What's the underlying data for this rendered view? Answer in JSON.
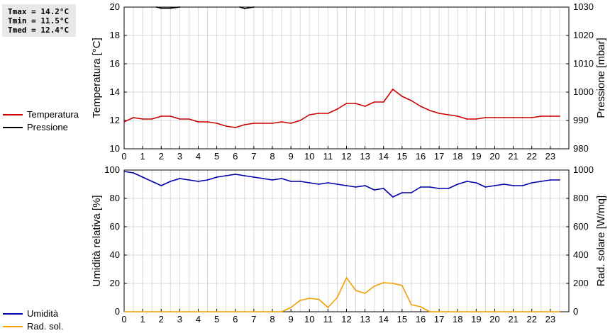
{
  "stats": {
    "tmax": "Tmax = 14.2°C",
    "tmin": "Tmin = 11.5°C",
    "tmed": "Tmed = 12.4°C"
  },
  "legend_top": [
    {
      "label": "Temperatura",
      "color": "#cc0000"
    },
    {
      "label": "Pressione",
      "color": "#000000"
    }
  ],
  "legend_bottom": [
    {
      "label": "Umidità",
      "color": "#0000aa"
    },
    {
      "label": "Rad. sol.",
      "color": "#f0a000"
    }
  ],
  "chart_data": [
    {
      "type": "line",
      "ylabel": "Temperatura [°C]",
      "y2label": "Pressione [mbar]",
      "xlim": [
        0,
        24
      ],
      "ylim": [
        10,
        20
      ],
      "y2lim": [
        980,
        1030
      ],
      "x_ticks": [
        "0",
        "1",
        "2",
        "3",
        "4",
        "5",
        "6",
        "7",
        "8",
        "9",
        "10",
        "11",
        "12",
        "13",
        "14",
        "15",
        "16",
        "17",
        "18",
        "19",
        "20",
        "21",
        "22",
        "23"
      ],
      "y_ticks": [
        10,
        12,
        14,
        16,
        18,
        20
      ],
      "y2_ticks": [
        980,
        990,
        1000,
        1010,
        1020,
        1030
      ],
      "grid": true,
      "series": [
        {
          "name": "Temperatura",
          "axis": "left",
          "color": "#cc0000",
          "x": [
            0,
            0.5,
            1,
            1.5,
            2,
            2.5,
            3,
            3.5,
            4,
            4.5,
            5,
            5.5,
            6,
            6.5,
            7,
            7.5,
            8,
            8.5,
            9,
            9.5,
            10,
            10.5,
            11,
            11.5,
            12,
            12.5,
            13,
            13.5,
            14,
            14.5,
            15,
            15.5,
            16,
            16.5,
            17,
            17.5,
            18,
            18.5,
            19,
            19.5,
            20,
            20.5,
            21,
            21.5,
            22,
            22.5,
            23,
            23.5
          ],
          "values": [
            11.9,
            12.2,
            12.1,
            12.1,
            12.3,
            12.3,
            12.1,
            12.1,
            11.9,
            11.9,
            11.8,
            11.6,
            11.5,
            11.7,
            11.8,
            11.8,
            11.8,
            11.9,
            11.8,
            12.0,
            12.4,
            12.5,
            12.5,
            12.8,
            13.2,
            13.2,
            13.0,
            13.3,
            13.3,
            14.2,
            13.7,
            13.4,
            13.0,
            12.7,
            12.5,
            12.4,
            12.3,
            12.1,
            12.1,
            12.2,
            12.2,
            12.2,
            12.2,
            12.2,
            12.2,
            12.3,
            12.3,
            12.3
          ]
        },
        {
          "name": "Pressione",
          "axis": "right",
          "color": "#000000",
          "x": [
            1.75,
            2,
            2.5,
            3,
            6.25,
            6.5,
            7
          ],
          "values": [
            1030,
            1029.6,
            1029.6,
            1030,
            1030,
            1029.5,
            1030
          ],
          "segments": [
            [
              0,
              3
            ],
            [
              4,
              6
            ]
          ]
        }
      ]
    },
    {
      "type": "line",
      "ylabel": "Umidità relativa [%]",
      "y2label": "Rad. solare [W/mq]",
      "xlim": [
        0,
        24
      ],
      "ylim": [
        0,
        100
      ],
      "y2lim": [
        0,
        1000
      ],
      "x_ticks": [
        "0",
        "1",
        "2",
        "3",
        "4",
        "5",
        "6",
        "7",
        "8",
        "9",
        "10",
        "11",
        "12",
        "13",
        "14",
        "15",
        "16",
        "17",
        "18",
        "19",
        "20",
        "21",
        "22",
        "23"
      ],
      "y_ticks": [
        0,
        20,
        40,
        60,
        80,
        100
      ],
      "y2_ticks": [
        0,
        200,
        400,
        600,
        800,
        1000
      ],
      "grid": true,
      "series": [
        {
          "name": "Umidità",
          "axis": "left",
          "color": "#0000aa",
          "x": [
            0,
            0.5,
            1,
            1.5,
            2,
            2.5,
            3,
            3.5,
            4,
            4.5,
            5,
            5.5,
            6,
            6.5,
            7,
            7.5,
            8,
            8.5,
            9,
            9.5,
            10,
            10.5,
            11,
            11.5,
            12,
            12.5,
            13,
            13.5,
            14,
            14.5,
            15,
            15.5,
            16,
            16.5,
            17,
            17.5,
            18,
            18.5,
            19,
            19.5,
            20,
            20.5,
            21,
            21.5,
            22,
            22.5,
            23,
            23.5
          ],
          "values": [
            99,
            98,
            95,
            92,
            89,
            92,
            94,
            93,
            92,
            93,
            95,
            96,
            97,
            96,
            95,
            94,
            93,
            94,
            92,
            92,
            91,
            90,
            91,
            90,
            89,
            88,
            89,
            86,
            87,
            81,
            84,
            84,
            88,
            88,
            87,
            87,
            90,
            92,
            91,
            88,
            89,
            90,
            89,
            89,
            91,
            92,
            93,
            93
          ]
        },
        {
          "name": "Rad. sol.",
          "axis": "right",
          "color": "#f0a000",
          "x": [
            0,
            8.5,
            9,
            9.5,
            10,
            10.5,
            11,
            11.5,
            12,
            12.5,
            13,
            13.5,
            14,
            14.5,
            15,
            15.5,
            16,
            16.5,
            17,
            23.5
          ],
          "values": [
            0,
            0,
            30,
            80,
            95,
            88,
            30,
            100,
            240,
            150,
            130,
            180,
            205,
            200,
            185,
            50,
            35,
            0,
            0,
            0
          ]
        }
      ]
    }
  ]
}
